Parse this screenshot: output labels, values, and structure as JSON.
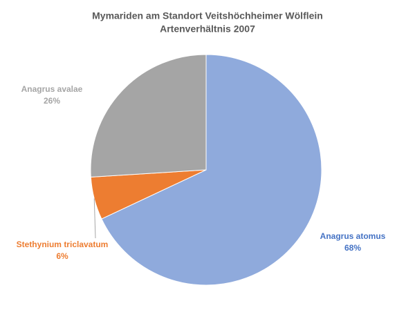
{
  "chart_data": {
    "type": "pie",
    "title": [
      "Mymariden am Standort Veitshöchheimer Wölflein",
      "Artenverhältnis 2007"
    ],
    "categories": [
      "Anagrus atomus",
      "Stethynium triclavatum",
      "Anagrus avalae"
    ],
    "values": [
      68,
      6,
      26
    ],
    "value_labels": [
      "68%",
      "6%",
      "26%"
    ],
    "colors": [
      "#8faadc",
      "#ed7d31",
      "#a5a5a5"
    ]
  }
}
